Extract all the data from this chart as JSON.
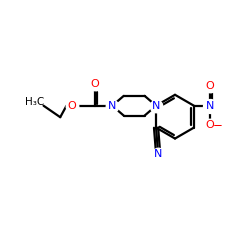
{
  "bg_color": "#ffffff",
  "bond_color": "#000000",
  "bond_lw": 1.6,
  "N_color": "#0000ff",
  "O_color": "#ff0000",
  "text_color": "#000000",
  "figsize": [
    2.5,
    2.5
  ],
  "dpi": 100,
  "xlim": [
    -1,
    11
  ],
  "ylim": [
    -1,
    11
  ]
}
